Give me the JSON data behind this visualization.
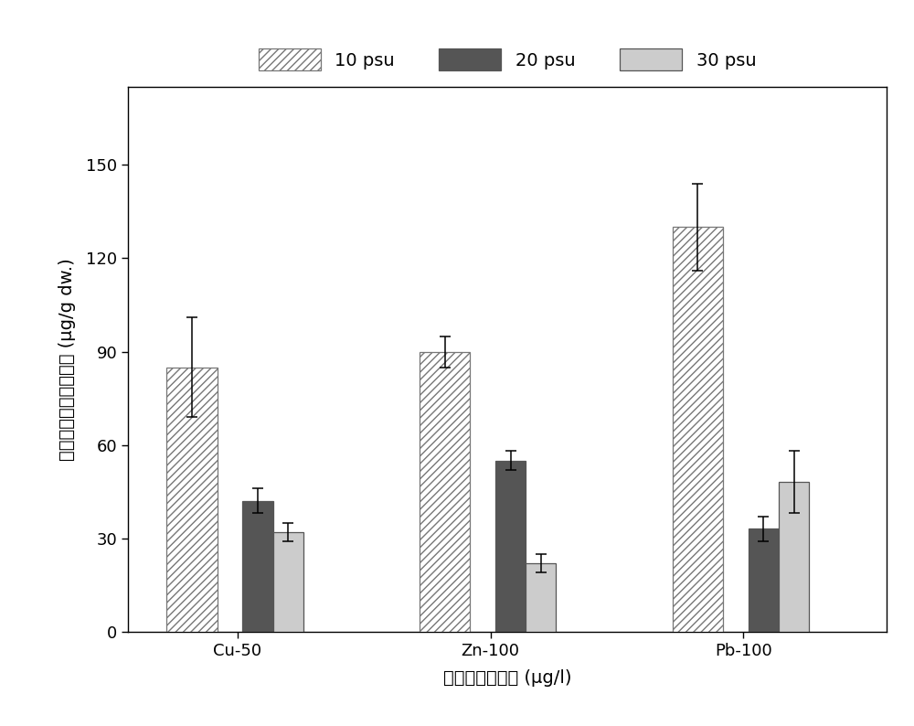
{
  "categories": [
    "Cu-50",
    "Zn-100",
    "Pb-100"
  ],
  "series": {
    "10 psu": {
      "values": [
        85,
        90,
        130
      ],
      "errors": [
        16,
        5,
        14
      ],
      "color": "white",
      "hatch": "////",
      "bar_width": 0.3
    },
    "20 psu": {
      "values": [
        42,
        55,
        33
      ],
      "errors": [
        4,
        3,
        4
      ],
      "color": "#555555",
      "hatch": "",
      "bar_width": 0.18
    },
    "30 psu": {
      "values": [
        32,
        22,
        48
      ],
      "errors": [
        3,
        3,
        10
      ],
      "color": "#cccccc",
      "hatch": "",
      "bar_width": 0.18
    }
  },
  "series_order": [
    "10 psu",
    "20 psu",
    "30 psu"
  ],
  "xlabel": "海水的金属浓度 (μg/l)",
  "ylabel": "海葡萄的金属累积浓度 (μg/g dw.)",
  "ylim": [
    0,
    175
  ],
  "yticks": [
    0,
    30,
    60,
    90,
    120,
    150
  ],
  "background_color": "#ffffff",
  "plot_bg_color": "#ffffff",
  "edge_color": "#555555",
  "hatch_line_color": "#777777",
  "label_fontsize": 14,
  "tick_fontsize": 13,
  "legend_fontsize": 14,
  "spine_linewidth": 1.0,
  "group_positions": [
    1.0,
    2.5,
    4.0
  ],
  "xlim": [
    0.35,
    4.85
  ],
  "offsets": [
    -0.27,
    0.12,
    0.3
  ]
}
